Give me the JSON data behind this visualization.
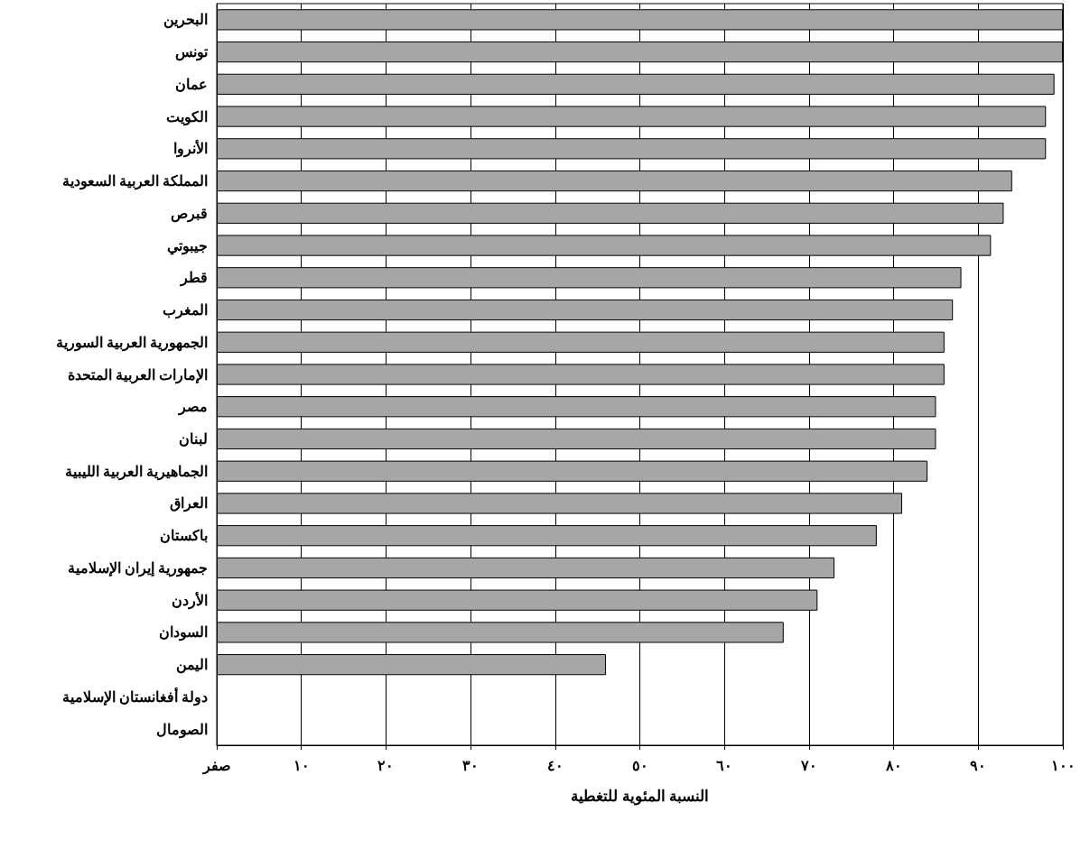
{
  "chart_data": {
    "type": "bar",
    "orientation": "horizontal",
    "xlabel": "النسبة المئوية للتغطية",
    "categories": [
      "البحرين",
      "تونس",
      "عمان",
      "الكويت",
      "الأنروا",
      "المملكة العربية السعودية",
      "قبرص",
      "جيبوتي",
      "قطر",
      "المغرب",
      "الجمهورية العربية السورية",
      "الإمارات العربية المتحدة",
      "مصر",
      "لبنان",
      "الجماهيرية العربية الليبية",
      "العراق",
      "باكستان",
      "جمهورية إيران الإسلامية",
      "الأردن",
      "السودان",
      "اليمن",
      "دولة أفغانستان الإسلامية",
      "الصومال"
    ],
    "values": [
      100,
      100,
      99,
      98,
      98,
      94,
      93,
      91.5,
      88,
      87,
      86,
      86,
      85,
      85,
      84,
      81,
      78,
      73,
      71,
      67,
      46,
      null,
      null
    ],
    "color": "#a6a6a6",
    "xlim": [
      0,
      100
    ],
    "xticks": [
      {
        "value": 0,
        "label": "صفر"
      },
      {
        "value": 10,
        "label": "١٠"
      },
      {
        "value": 20,
        "label": "٢٠"
      },
      {
        "value": 30,
        "label": "٣٠"
      },
      {
        "value": 40,
        "label": "٤٠"
      },
      {
        "value": 50,
        "label": "٥٠"
      },
      {
        "value": 60,
        "label": "٦٠"
      },
      {
        "value": 70,
        "label": "٧٠"
      },
      {
        "value": 80,
        "label": "٨٠"
      },
      {
        "value": 90,
        "label": "٩٠"
      },
      {
        "value": 100,
        "label": "١٠٠"
      }
    ],
    "grid": "x"
  }
}
